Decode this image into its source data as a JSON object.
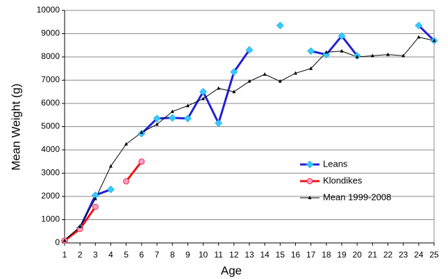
{
  "chart_data": {
    "type": "line",
    "x_label": "Age",
    "y_label": "Mean Weight (g)",
    "x": [
      1,
      2,
      3,
      4,
      5,
      6,
      7,
      8,
      9,
      10,
      11,
      12,
      13,
      14,
      15,
      16,
      17,
      18,
      19,
      20,
      21,
      22,
      23,
      24,
      25
    ],
    "xlim": [
      1,
      25
    ],
    "xticks": [
      1,
      2,
      3,
      4,
      5,
      6,
      7,
      8,
      9,
      10,
      11,
      12,
      13,
      14,
      15,
      16,
      17,
      18,
      19,
      20,
      21,
      22,
      23,
      24,
      25
    ],
    "ylim": [
      0,
      10000
    ],
    "yticks": [
      0,
      1000,
      2000,
      3000,
      4000,
      5000,
      6000,
      7000,
      8000,
      9000,
      10000
    ],
    "grid": true,
    "legend": "right",
    "series": [
      {
        "name": "Leans",
        "color": "#1f1fd6",
        "marker_color": "#33ccff",
        "marker": "diamond",
        "linewidth": 3,
        "values": [
          100,
          650,
          2050,
          2300,
          null,
          4700,
          5350,
          5380,
          5350,
          6500,
          5150,
          7350,
          8300,
          null,
          9350,
          null,
          8250,
          8100,
          8900,
          8050,
          null,
          null,
          null,
          9350,
          8700
        ]
      },
      {
        "name": "Klondikes",
        "color": "#ee1111",
        "marker_color": "#ff99cc",
        "marker": "circle",
        "linewidth": 3,
        "values": [
          100,
          600,
          1550,
          null,
          2650,
          3500,
          null,
          null,
          null,
          null,
          null,
          null,
          null,
          null,
          null,
          null,
          null,
          null,
          null,
          null,
          null,
          null,
          null,
          null,
          null
        ]
      },
      {
        "name": "Mean 1999-2008",
        "color": "#000000",
        "marker_color": "#000000",
        "marker": "triangle",
        "linewidth": 1,
        "values": [
          100,
          700,
          1900,
          3300,
          4250,
          4750,
          5100,
          5650,
          5900,
          6200,
          6650,
          6500,
          6950,
          7250,
          6950,
          7300,
          7500,
          8200,
          8250,
          8000,
          8050,
          8100,
          8050,
          8850,
          8700
        ]
      }
    ]
  }
}
